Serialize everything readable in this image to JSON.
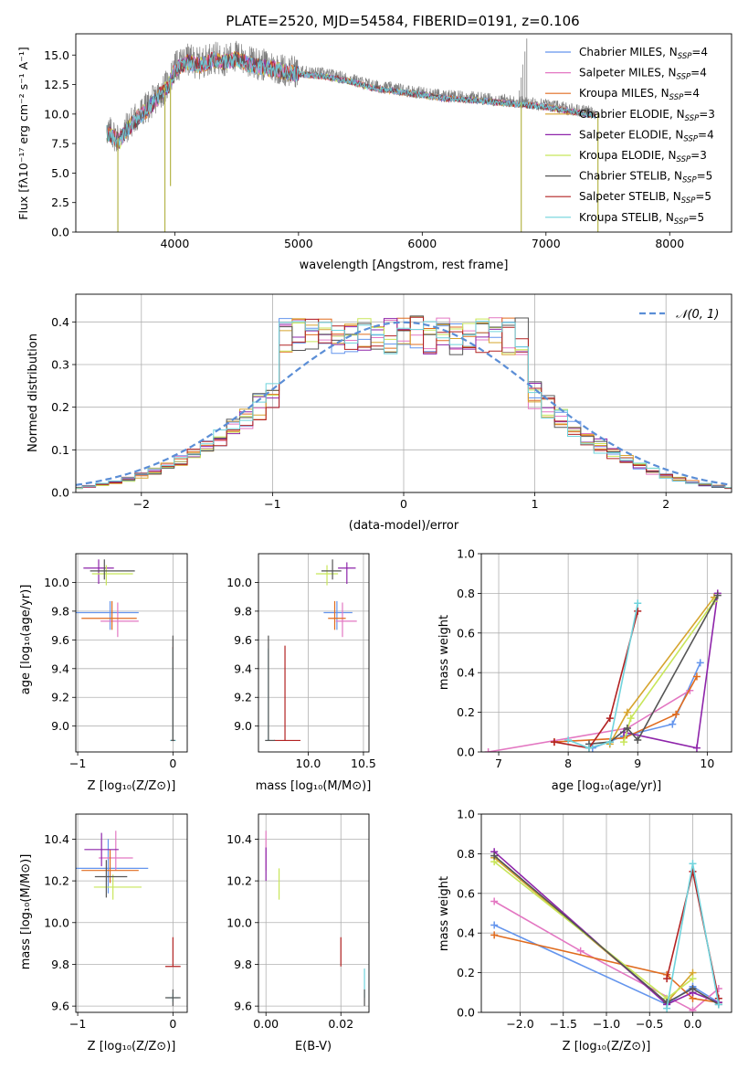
{
  "title": "PLATE=2520, MJD=54584, FIBERID=0191, z=0.106",
  "colors": {
    "chabrier_miles": "#6495ed",
    "salpeter_miles": "#e377c2",
    "kroupa_miles": "#e06c1f",
    "chabrier_elodie": "#d6a42e",
    "salpeter_elodie": "#8e24aa",
    "kroupa_elodie": "#c8e65a",
    "chabrier_stelib": "#555555",
    "salpeter_stelib": "#b22222",
    "kroupa_stelib": "#6fd3dc",
    "data_gray": "#808080",
    "normal_curve": "#5b8ed6"
  },
  "legend": [
    {
      "label": "Chabrier MILES, N",
      "sub": "SSP",
      "tail": "=4",
      "color": "#6495ed"
    },
    {
      "label": "Salpeter MILES, N",
      "sub": "SSP",
      "tail": "=4",
      "color": "#e377c2"
    },
    {
      "label": "Kroupa MILES, N",
      "sub": "SSP",
      "tail": "=4",
      "color": "#e06c1f"
    },
    {
      "label": "Chabrier ELODIE, N",
      "sub": "SSP",
      "tail": "=3",
      "color": "#d6a42e"
    },
    {
      "label": "Salpeter ELODIE, N",
      "sub": "SSP",
      "tail": "=4",
      "color": "#8e24aa"
    },
    {
      "label": "Kroupa ELODIE, N",
      "sub": "SSP",
      "tail": "=3",
      "color": "#c8e65a"
    },
    {
      "label": "Chabrier STELIB, N",
      "sub": "SSP",
      "tail": "=5",
      "color": "#555555"
    },
    {
      "label": "Salpeter STELIB, N",
      "sub": "SSP",
      "tail": "=5",
      "color": "#b22222"
    },
    {
      "label": "Kroupa STELIB, N",
      "sub": "SSP",
      "tail": "=5",
      "color": "#6fd3dc"
    }
  ],
  "chart_data": [
    {
      "type": "line",
      "panel": "spectrum",
      "title": "PLATE=2520, MJD=54584, FIBERID=0191, z=0.106",
      "xlabel": "wavelength [Angstrom, rest frame]",
      "ylabel": "Flux [fλ10⁻¹⁷ erg cm⁻² s⁻¹ A⁻¹]",
      "xlim": [
        3200,
        8500
      ],
      "ylim": [
        0,
        16.8
      ],
      "xticks": [
        4000,
        5000,
        6000,
        7000,
        8000
      ],
      "yticks": [
        0.0,
        2.5,
        5.0,
        7.5,
        10.0,
        12.5,
        15.0
      ],
      "grid": false,
      "legend_position": "top-right",
      "envelope": {
        "x": [
          3450,
          3500,
          3550,
          3600,
          3700,
          3800,
          3900,
          3950,
          4000,
          4100,
          4200,
          4300,
          4400,
          4500,
          4600,
          4700,
          4800,
          4900,
          5000,
          5200,
          5400,
          5600,
          5800,
          6000,
          6200,
          6400,
          6600,
          6800,
          7000,
          7200,
          7400
        ],
        "y": [
          8.6,
          8.3,
          7.9,
          8.7,
          9.9,
          10.8,
          12.0,
          12.6,
          13.9,
          14.6,
          14.3,
          14.8,
          14.6,
          14.9,
          14.4,
          14.2,
          14.0,
          13.7,
          13.6,
          13.4,
          13.0,
          12.4,
          12.1,
          11.8,
          11.5,
          11.4,
          11.2,
          11.0,
          10.8,
          10.4,
          10.1
        ]
      },
      "absorption_dips": [
        {
          "x": 3540,
          "y": 0.0
        },
        {
          "x": 3920,
          "y": 0.0
        },
        {
          "x": 3965,
          "y": 3.9
        },
        {
          "x": 6800,
          "y": 0.0
        },
        {
          "x": 7420,
          "y": 0.0
        }
      ]
    },
    {
      "type": "step",
      "panel": "residuals",
      "xlabel": "(data-model)/error",
      "ylabel": "Normed distribution",
      "xlim": [
        -2.5,
        2.5
      ],
      "ylim": [
        0,
        0.465
      ],
      "xticks": [
        -2,
        -1,
        0,
        1,
        2
      ],
      "yticks": [
        0.0,
        0.1,
        0.2,
        0.3,
        0.4
      ],
      "grid": true,
      "legend": [
        {
          "label": "𝒩(0, 1)",
          "style": "dashed"
        }
      ],
      "legend_position": "top-right",
      "normal_curve": {
        "mean": 0,
        "sigma": 1
      }
    },
    {
      "type": "errorbar",
      "panel": "age-vs-Z",
      "xlabel": "Z [log₁₀(Z/Z⊙)]",
      "ylabel": "age [log₁₀(age/yr)]",
      "xlim": [
        -1.02,
        0.15
      ],
      "ylim": [
        8.82,
        10.2
      ],
      "xticks": [
        -1,
        0
      ],
      "yticks": [
        9.0,
        9.2,
        9.4,
        9.6,
        9.8,
        10.0
      ],
      "points": [
        {
          "model": "chabrier_miles",
          "x": -0.66,
          "y": 9.79,
          "xerr": [
            0.36,
            0.3
          ],
          "yerr": [
            0.12,
            0.08
          ]
        },
        {
          "model": "salpeter_miles",
          "x": -0.58,
          "y": 9.73,
          "xerr": [
            0.18,
            0.22
          ],
          "yerr": [
            0.11,
            0.13
          ]
        },
        {
          "model": "kroupa_miles",
          "x": -0.64,
          "y": 9.75,
          "xerr": [
            0.32,
            0.26
          ],
          "yerr": [
            0.08,
            0.12
          ]
        },
        {
          "model": "salpeter_elodie",
          "x": -0.78,
          "y": 10.1,
          "xerr": [
            0.16,
            0.16
          ],
          "yerr": [
            0.11,
            0.06
          ]
        },
        {
          "model": "kroupa_elodie",
          "x": -0.7,
          "y": 10.06,
          "xerr": [
            0.15,
            0.28
          ],
          "yerr": [
            0.08,
            0.06
          ]
        },
        {
          "model": "chabrier_stelib",
          "x": -0.72,
          "y": 10.08,
          "xerr": [
            0.15,
            0.32
          ],
          "yerr": [
            0.06,
            0.08
          ]
        },
        {
          "model": "salpeter_stelib",
          "x": 0.0,
          "y": 8.9,
          "xerr": [
            0.02,
            0.02
          ],
          "yerr": [
            0.0,
            0.65
          ]
        },
        {
          "model": "kroupa_stelib",
          "x": 0.0,
          "y": 8.9,
          "xerr": [
            0.03,
            0.03
          ],
          "yerr": [
            0.0,
            0.64
          ]
        },
        {
          "model": "chabrier_stelib",
          "x": 0.0,
          "y": 8.9,
          "xerr": [
            0.02,
            0.02
          ],
          "yerr": [
            0.0,
            0.73
          ]
        }
      ]
    },
    {
      "type": "errorbar",
      "panel": "age-vs-mass",
      "xlabel": "mass [log₁₀(M/M⊙)]",
      "ylabel": "",
      "xlim": [
        9.55,
        10.55
      ],
      "ylim": [
        8.82,
        10.2
      ],
      "xticks": [
        10.0,
        10.5
      ],
      "yticks": [
        9.0,
        9.2,
        9.4,
        9.6,
        9.8,
        10.0
      ],
      "points": [
        {
          "model": "chabrier_miles",
          "x": 10.26,
          "y": 9.79,
          "xerr": [
            0.12,
            0.14
          ],
          "yerr": [
            0.12,
            0.08
          ]
        },
        {
          "model": "salpeter_miles",
          "x": 10.31,
          "y": 9.73,
          "xerr": [
            0.06,
            0.13
          ],
          "yerr": [
            0.11,
            0.13
          ]
        },
        {
          "model": "kroupa_miles",
          "x": 10.24,
          "y": 9.75,
          "xerr": [
            0.06,
            0.1
          ],
          "yerr": [
            0.08,
            0.12
          ]
        },
        {
          "model": "salpeter_elodie",
          "x": 10.35,
          "y": 10.1,
          "xerr": [
            0.08,
            0.08
          ],
          "yerr": [
            0.11,
            0.04
          ]
        },
        {
          "model": "kroupa_elodie",
          "x": 10.17,
          "y": 10.06,
          "xerr": [
            0.1,
            0.1
          ],
          "yerr": [
            0.08,
            0.06
          ]
        },
        {
          "model": "chabrier_stelib",
          "x": 10.22,
          "y": 10.08,
          "xerr": [
            0.1,
            0.08
          ],
          "yerr": [
            0.06,
            0.08
          ]
        },
        {
          "model": "salpeter_stelib",
          "x": 9.79,
          "y": 8.9,
          "xerr": [
            0.1,
            0.14
          ],
          "yerr": [
            0.0,
            0.66
          ]
        },
        {
          "model": "kroupa_stelib",
          "x": 9.64,
          "y": 8.9,
          "xerr": [
            0.02,
            0.02
          ],
          "yerr": [
            0.0,
            0.64
          ]
        },
        {
          "model": "chabrier_stelib",
          "x": 9.64,
          "y": 8.9,
          "xerr": [
            0.03,
            0.06
          ],
          "yerr": [
            0.0,
            0.73
          ]
        }
      ]
    },
    {
      "type": "line",
      "panel": "mass-weight-vs-age",
      "xlabel": "age [log₁₀(age/yr)]",
      "ylabel": "mass weight",
      "xlim": [
        6.75,
        10.35
      ],
      "ylim": [
        0,
        1.0
      ],
      "xticks": [
        7,
        8,
        9,
        10
      ],
      "yticks": [
        0.0,
        0.2,
        0.4,
        0.6,
        0.8,
        1.0
      ],
      "grid": true,
      "series": [
        {
          "model": "chabrier_miles",
          "x": [
            8.35,
            8.8,
            9.5,
            9.9
          ],
          "y": [
            0.02,
            0.08,
            0.14,
            0.45
          ]
        },
        {
          "model": "salpeter_miles",
          "x": [
            6.85,
            8.85,
            9.75
          ],
          "y": [
            0.0,
            0.12,
            0.31
          ]
        },
        {
          "model": "kroupa_miles",
          "x": [
            7.8,
            8.8,
            9.55,
            9.85
          ],
          "y": [
            0.05,
            0.07,
            0.19,
            0.38
          ]
        },
        {
          "model": "chabrier_elodie",
          "x": [
            8.6,
            8.85,
            10.1
          ],
          "y": [
            0.04,
            0.2,
            0.78
          ]
        },
        {
          "model": "salpeter_elodie",
          "x": [
            8.8,
            9.85,
            10.15
          ],
          "y": [
            0.1,
            0.02,
            0.8
          ]
        },
        {
          "model": "kroupa_elodie",
          "x": [
            8.8,
            8.9,
            10.1
          ],
          "y": [
            0.05,
            0.17,
            0.76
          ]
        },
        {
          "model": "chabrier_stelib",
          "x": [
            8.3,
            8.6,
            8.85,
            9.0,
            10.15
          ],
          "y": [
            0.04,
            0.05,
            0.12,
            0.06,
            0.79
          ]
        },
        {
          "model": "salpeter_stelib",
          "x": [
            7.8,
            8.3,
            8.6,
            9.0
          ],
          "y": [
            0.05,
            0.02,
            0.17,
            0.71
          ]
        },
        {
          "model": "kroupa_stelib",
          "x": [
            8.0,
            8.3,
            8.6,
            9.0
          ],
          "y": [
            0.06,
            0.02,
            0.05,
            0.75
          ]
        }
      ]
    },
    {
      "type": "errorbar",
      "panel": "mass-vs-Z",
      "xlabel": "Z [log₁₀(Z/Z⊙)]",
      "ylabel": "mass [log₁₀(M/M⊙)]",
      "xlim": [
        -1.02,
        0.15
      ],
      "ylim": [
        9.57,
        10.52
      ],
      "xticks": [
        -1,
        0
      ],
      "yticks": [
        9.6,
        9.8,
        10.0,
        10.2,
        10.4
      ],
      "points": [
        {
          "model": "chabrier_miles",
          "x": -0.68,
          "y": 10.26,
          "xerr": [
            0.34,
            0.42
          ],
          "yerr": [
            0.12,
            0.14
          ]
        },
        {
          "model": "salpeter_miles",
          "x": -0.6,
          "y": 10.31,
          "xerr": [
            0.18,
            0.18
          ],
          "yerr": [
            0.06,
            0.13
          ]
        },
        {
          "model": "kroupa_miles",
          "x": -0.66,
          "y": 10.25,
          "xerr": [
            0.3,
            0.3
          ],
          "yerr": [
            0.06,
            0.1
          ]
        },
        {
          "model": "salpeter_elodie",
          "x": -0.75,
          "y": 10.35,
          "xerr": [
            0.18,
            0.18
          ],
          "yerr": [
            0.08,
            0.08
          ]
        },
        {
          "model": "kroupa_elodie",
          "x": -0.63,
          "y": 10.17,
          "xerr": [
            0.2,
            0.3
          ],
          "yerr": [
            0.06,
            0.06
          ]
        },
        {
          "model": "chabrier_stelib",
          "x": -0.7,
          "y": 10.22,
          "xerr": [
            0.12,
            0.22
          ],
          "yerr": [
            0.1,
            0.08
          ]
        },
        {
          "model": "salpeter_stelib",
          "x": 0.0,
          "y": 9.79,
          "xerr": [
            0.08,
            0.08
          ],
          "yerr": [
            0.0,
            0.14
          ]
        },
        {
          "model": "kroupa_stelib",
          "x": 0.0,
          "y": 9.64,
          "xerr": [
            0.06,
            0.06
          ],
          "yerr": [
            0.02,
            0.02
          ]
        },
        {
          "model": "chabrier_stelib",
          "x": 0.0,
          "y": 9.64,
          "xerr": [
            0.08,
            0.08
          ],
          "yerr": [
            0.04,
            0.04
          ]
        }
      ]
    },
    {
      "type": "errorbar",
      "panel": "mass-vs-EBV",
      "xlabel": "E(B-V)",
      "ylabel": "",
      "xlim": [
        -0.002,
        0.0275
      ],
      "ylim": [
        9.57,
        10.52
      ],
      "xticks": [
        0.0,
        0.02
      ],
      "yticks": [
        9.6,
        9.8,
        10.0,
        10.2,
        10.4
      ],
      "points": [
        {
          "model": "salpeter_miles",
          "x": 0.0,
          "y": 10.31,
          "yerr": [
            0.06,
            0.13
          ]
        },
        {
          "model": "salpeter_elodie",
          "x": 0.0,
          "y": 10.28,
          "yerr": [
            0.08,
            0.08
          ]
        },
        {
          "model": "kroupa_elodie",
          "x": 0.0035,
          "y": 10.19,
          "yerr": [
            0.08,
            0.07
          ]
        },
        {
          "model": "salpeter_stelib",
          "x": 0.02,
          "y": 9.86,
          "yerr": [
            0.07,
            0.07
          ]
        },
        {
          "model": "kroupa_stelib",
          "x": 0.0263,
          "y": 9.7,
          "yerr": [
            0.06,
            0.08
          ]
        },
        {
          "model": "chabrier_stelib",
          "x": 0.0263,
          "y": 9.64,
          "yerr": [
            0.04,
            0.04
          ]
        }
      ]
    },
    {
      "type": "line",
      "panel": "mass-weight-vs-Z",
      "xlabel": "Z [log₁₀(Z/Z⊙)]",
      "ylabel": "mass weight",
      "xlim": [
        -2.45,
        0.45
      ],
      "ylim": [
        0,
        1.0
      ],
      "xticks": [
        -2.0,
        -1.5,
        -1.0,
        -0.5,
        0.0
      ],
      "yticks": [
        0.0,
        0.2,
        0.4,
        0.6,
        0.8,
        1.0
      ],
      "grid": true,
      "series": [
        {
          "model": "chabrier_miles",
          "x": [
            -2.3,
            -0.3,
            0.0,
            0.3
          ],
          "y": [
            0.44,
            0.04,
            0.13,
            0.05
          ]
        },
        {
          "model": "salpeter_miles",
          "x": [
            -2.3,
            -1.3,
            0.0,
            0.3
          ],
          "y": [
            0.56,
            0.31,
            0.01,
            0.12
          ]
        },
        {
          "model": "kroupa_miles",
          "x": [
            -2.3,
            -0.3,
            0.0,
            0.3
          ],
          "y": [
            0.39,
            0.19,
            0.07,
            0.05
          ]
        },
        {
          "model": "chabrier_elodie",
          "x": [
            -2.3,
            -0.3,
            0.0
          ],
          "y": [
            0.78,
            0.05,
            0.2
          ]
        },
        {
          "model": "salpeter_elodie",
          "x": [
            -2.3,
            -0.3,
            0.0,
            0.3
          ],
          "y": [
            0.81,
            0.04,
            0.1,
            0.05
          ]
        },
        {
          "model": "kroupa_elodie",
          "x": [
            -2.3,
            -0.3,
            0.0
          ],
          "y": [
            0.76,
            0.07,
            0.17
          ]
        },
        {
          "model": "chabrier_stelib",
          "x": [
            -2.3,
            -0.3,
            0.0,
            0.3
          ],
          "y": [
            0.79,
            0.05,
            0.12,
            0.04
          ]
        },
        {
          "model": "salpeter_stelib",
          "x": [
            -0.3,
            0.0,
            0.3
          ],
          "y": [
            0.17,
            0.71,
            0.07
          ]
        },
        {
          "model": "kroupa_stelib",
          "x": [
            -0.3,
            0.0,
            0.3
          ],
          "y": [
            0.02,
            0.75,
            0.04
          ]
        }
      ]
    }
  ]
}
